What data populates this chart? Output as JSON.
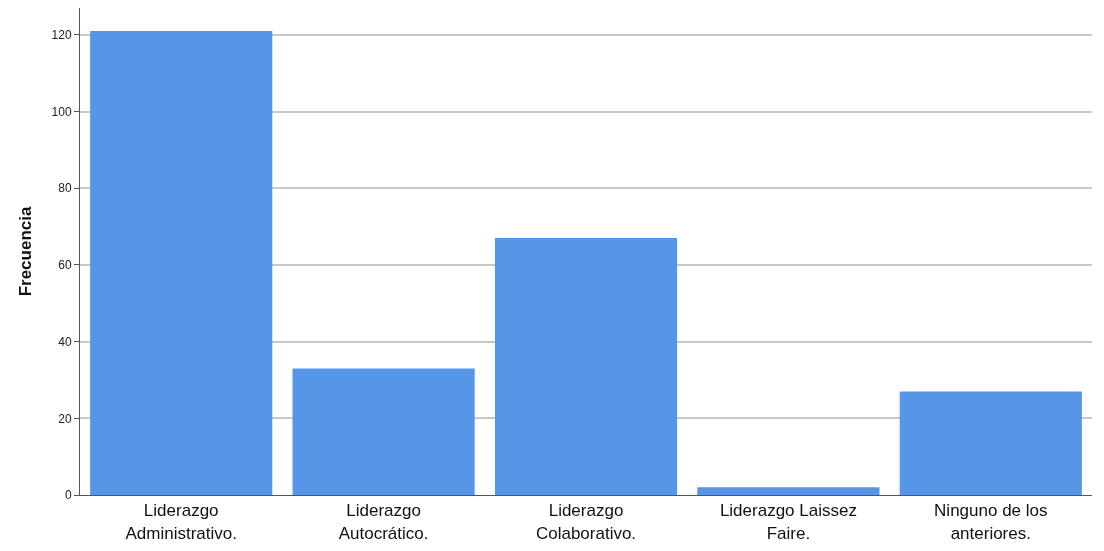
{
  "chart_data": {
    "type": "bar",
    "ylabel": "Frecuencia",
    "categories": [
      "Liderazgo\nAdministrativo.",
      "Liderazgo\nAutocrático.",
      "Liderazgo\nColaborativo.",
      "Liderazgo Laissez\nFaire.",
      "Ninguno de los\nanteriores."
    ],
    "values": [
      121,
      33,
      67,
      2,
      27
    ],
    "color": "#5596e6",
    "ylim": [
      0,
      127
    ],
    "yticks": [
      0,
      20,
      40,
      60,
      80,
      100,
      120
    ],
    "grid": "y"
  }
}
